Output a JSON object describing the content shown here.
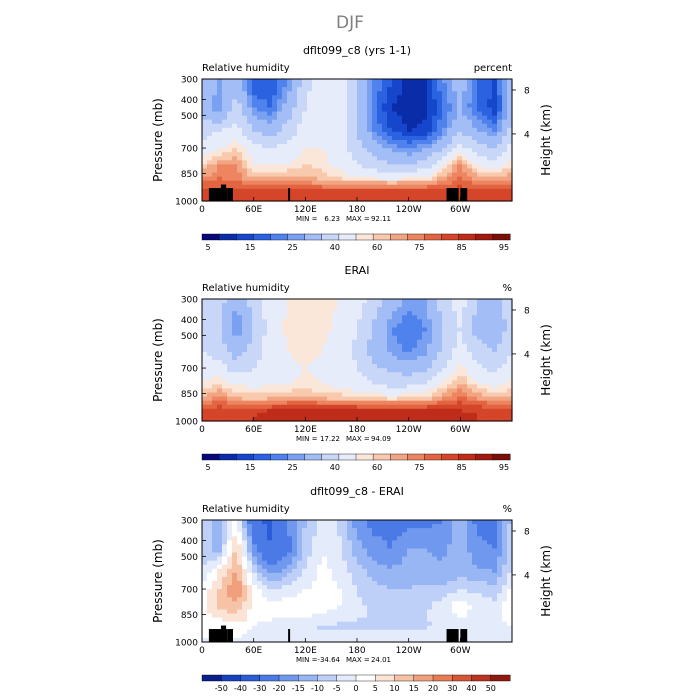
{
  "page_title": "DJF",
  "colors": {
    "rh_levels": [
      "#08087a",
      "#0b2ca8",
      "#1646cc",
      "#2a62e0",
      "#4f82ec",
      "#7aa0f2",
      "#a3bdf6",
      "#c8d6f8",
      "#e6ecfa",
      "#fbe6da",
      "#f8c9ad",
      "#f2a583",
      "#ec8560",
      "#e26440",
      "#d4452a",
      "#bf2d1a",
      "#a01a10",
      "#7a0f0a"
    ],
    "diff_levels": [
      "#0a1f8a",
      "#1740c0",
      "#2b5cd8",
      "#4b7ae6",
      "#7098ee",
      "#98b6f4",
      "#bfd0f8",
      "#e4ebfa",
      "#ffffff",
      "#fbe4d6",
      "#f6c3a6",
      "#f0a07c",
      "#e67b56",
      "#d65636",
      "#bb3320",
      "#8e1a10"
    ],
    "topography": "#000000"
  },
  "chart_data": [
    {
      "type": "heatmap",
      "title": "dflt099_c8 (yrs 1-1)",
      "left_label": "Relative humidity",
      "units": "percent",
      "xlabel": "",
      "ylabel": "Pressure (mb)",
      "y2label": "Height (km)",
      "xticks": [
        "0",
        "60E",
        "120E",
        "180",
        "120W",
        "60W"
      ],
      "xlim": [
        0,
        360
      ],
      "yticks": [
        "300",
        "400",
        "500",
        "700",
        "850",
        "1000"
      ],
      "ylim": [
        1000,
        300
      ],
      "y2ticks": [
        "8",
        "4"
      ],
      "stats": {
        "min_label": "MIN =",
        "min": "6.23",
        "max_label": "MAX =",
        "max": "92.11"
      },
      "colorbar": {
        "ticks": [
          "5",
          "15",
          "25",
          "40",
          "60",
          "75",
          "85",
          "95"
        ]
      },
      "topography_blocks": [
        {
          "lon": [
            8,
            30
          ],
          "p_top": 880
        },
        {
          "lon": [
            22,
            28
          ],
          "p_top": 850
        },
        {
          "lon": [
            30,
            36
          ],
          "p_top": 880
        },
        {
          "lon": [
            100,
            102
          ],
          "p_top": 880
        },
        {
          "lon": [
            284,
            298
          ],
          "p_top": 880
        },
        {
          "lon": [
            300,
            308
          ],
          "p_top": 880
        }
      ],
      "field": {
        "lon": [
          0,
          20,
          40,
          60,
          80,
          100,
          120,
          140,
          160,
          180,
          200,
          220,
          240,
          260,
          280,
          300,
          320,
          340,
          360
        ],
        "p": [
          300,
          400,
          500,
          600,
          700,
          800,
          850,
          900,
          950,
          1000
        ],
        "values": [
          [
            40,
            30,
            35,
            15,
            15,
            25,
            45,
            60,
            55,
            40,
            25,
            15,
            8,
            10,
            25,
            35,
            20,
            15,
            40
          ],
          [
            35,
            25,
            45,
            25,
            20,
            35,
            50,
            60,
            55,
            40,
            20,
            10,
            7,
            8,
            20,
            30,
            20,
            12,
            35
          ],
          [
            45,
            50,
            55,
            40,
            35,
            45,
            55,
            60,
            55,
            40,
            25,
            15,
            10,
            12,
            25,
            40,
            30,
            25,
            45
          ],
          [
            55,
            60,
            65,
            55,
            50,
            55,
            60,
            60,
            55,
            45,
            35,
            30,
            25,
            30,
            40,
            55,
            45,
            40,
            55
          ],
          [
            65,
            75,
            75,
            60,
            60,
            60,
            65,
            62,
            58,
            50,
            45,
            40,
            40,
            45,
            60,
            75,
            60,
            55,
            65
          ],
          [
            75,
            80,
            78,
            70,
            70,
            72,
            72,
            68,
            65,
            60,
            60,
            58,
            60,
            62,
            72,
            82,
            72,
            70,
            75
          ],
          [
            82,
            85,
            82,
            80,
            80,
            80,
            78,
            76,
            76,
            75,
            75,
            75,
            75,
            76,
            80,
            85,
            80,
            80,
            82
          ],
          [
            85,
            85,
            85,
            85,
            86,
            86,
            86,
            86,
            86,
            86,
            86,
            86,
            86,
            86,
            86,
            86,
            86,
            85,
            85
          ],
          [
            88,
            88,
            88,
            88,
            88,
            88,
            88,
            88,
            88,
            88,
            88,
            88,
            88,
            88,
            88,
            88,
            88,
            88,
            88
          ],
          [
            88,
            88,
            88,
            88,
            88,
            88,
            88,
            88,
            88,
            88,
            88,
            88,
            88,
            88,
            88,
            88,
            88,
            88,
            88
          ]
        ]
      }
    },
    {
      "type": "heatmap",
      "title": "ERAI",
      "left_label": "Relative humidity",
      "units": "%",
      "xlabel": "",
      "ylabel": "Pressure (mb)",
      "y2label": "Height (km)",
      "xticks": [
        "0",
        "60E",
        "120E",
        "180",
        "120W",
        "60W"
      ],
      "xlim": [
        0,
        360
      ],
      "yticks": [
        "300",
        "400",
        "500",
        "700",
        "850",
        "1000"
      ],
      "ylim": [
        1000,
        300
      ],
      "y2ticks": [
        "8",
        "4"
      ],
      "stats": {
        "min_label": "MIN =",
        "min": "17.22",
        "max_label": "MAX =",
        "max": "94.09"
      },
      "colorbar": {
        "ticks": [
          "5",
          "15",
          "25",
          "40",
          "60",
          "75",
          "85",
          "95"
        ]
      },
      "topography_blocks": [],
      "field": {
        "lon": [
          0,
          20,
          40,
          60,
          80,
          100,
          120,
          140,
          160,
          180,
          200,
          220,
          240,
          260,
          280,
          300,
          320,
          340,
          360
        ],
        "p": [
          300,
          400,
          500,
          600,
          700,
          800,
          850,
          900,
          950,
          1000
        ],
        "values": [
          [
            50,
            45,
            30,
            45,
            55,
            60,
            60,
            62,
            60,
            55,
            45,
            35,
            28,
            30,
            45,
            55,
            40,
            35,
            50
          ],
          [
            45,
            40,
            25,
            40,
            55,
            62,
            62,
            62,
            58,
            50,
            38,
            25,
            20,
            25,
            40,
            50,
            35,
            30,
            45
          ],
          [
            50,
            45,
            35,
            45,
            55,
            60,
            62,
            60,
            55,
            48,
            35,
            28,
            24,
            28,
            42,
            55,
            45,
            40,
            50
          ],
          [
            55,
            55,
            45,
            50,
            55,
            58,
            60,
            58,
            55,
            50,
            42,
            38,
            35,
            38,
            50,
            62,
            52,
            48,
            55
          ],
          [
            62,
            65,
            60,
            58,
            60,
            60,
            62,
            60,
            58,
            55,
            50,
            48,
            48,
            52,
            62,
            72,
            62,
            58,
            62
          ],
          [
            72,
            78,
            70,
            68,
            70,
            72,
            72,
            70,
            68,
            66,
            65,
            64,
            66,
            68,
            75,
            82,
            74,
            72,
            72
          ],
          [
            80,
            85,
            80,
            80,
            82,
            84,
            84,
            84,
            82,
            82,
            80,
            80,
            80,
            82,
            85,
            88,
            84,
            82,
            80
          ],
          [
            85,
            88,
            86,
            88,
            90,
            90,
            90,
            90,
            90,
            90,
            90,
            90,
            90,
            90,
            90,
            90,
            88,
            86,
            85
          ],
          [
            88,
            90,
            88,
            90,
            92,
            92,
            92,
            92,
            92,
            92,
            92,
            92,
            92,
            92,
            92,
            92,
            90,
            88,
            88
          ],
          [
            88,
            90,
            88,
            90,
            92,
            92,
            92,
            92,
            92,
            92,
            92,
            92,
            92,
            92,
            92,
            92,
            90,
            88,
            88
          ]
        ]
      }
    },
    {
      "type": "heatmap",
      "title": "dflt099_c8 - ERAI",
      "left_label": "Relative humidity",
      "units": "%",
      "xlabel": "",
      "ylabel": "Pressure (mb)",
      "y2label": "Height (km)",
      "xticks": [
        "0",
        "60E",
        "120E",
        "180",
        "120W",
        "60W"
      ],
      "xlim": [
        0,
        360
      ],
      "yticks": [
        "300",
        "400",
        "500",
        "700",
        "850",
        "1000"
      ],
      "ylim": [
        1000,
        300
      ],
      "y2ticks": [
        "8",
        "4"
      ],
      "stats": {
        "min_label": "MIN =",
        "min": "-34.64",
        "max_label": "MAX =",
        "max": "24.01"
      },
      "colorbar": {
        "ticks": [
          "-50",
          "-40",
          "-30",
          "-20",
          "-15",
          "-10",
          "-5",
          "0",
          "5",
          "10",
          "15",
          "20",
          "30",
          "40",
          "50"
        ]
      },
      "topography_blocks": [
        {
          "lon": [
            8,
            30
          ],
          "p_top": 880
        },
        {
          "lon": [
            22,
            28
          ],
          "p_top": 850
        },
        {
          "lon": [
            30,
            36
          ],
          "p_top": 880
        },
        {
          "lon": [
            100,
            102
          ],
          "p_top": 880
        },
        {
          "lon": [
            284,
            298
          ],
          "p_top": 880
        },
        {
          "lon": [
            300,
            308
          ],
          "p_top": 880
        }
      ],
      "field": {
        "lon": [
          0,
          20,
          40,
          60,
          80,
          100,
          120,
          140,
          160,
          180,
          200,
          220,
          240,
          260,
          280,
          300,
          320,
          340,
          360
        ],
        "p": [
          300,
          400,
          500,
          600,
          700,
          800,
          850,
          900,
          950,
          1000
        ],
        "values": [
          [
            -8,
            -12,
            2,
            -28,
            -32,
            -20,
            -10,
            -3,
            -6,
            -18,
            -22,
            -22,
            -22,
            -22,
            -20,
            -12,
            -22,
            -22,
            -8
          ],
          [
            -8,
            -12,
            12,
            -18,
            -30,
            -22,
            -8,
            0,
            -4,
            -12,
            -18,
            -20,
            -15,
            -15,
            -16,
            -12,
            -18,
            -20,
            -8
          ],
          [
            -4,
            6,
            16,
            -6,
            -18,
            -12,
            -4,
            2,
            -2,
            -8,
            -12,
            -14,
            -12,
            -14,
            -14,
            -12,
            -14,
            -15,
            -4
          ],
          [
            2,
            10,
            20,
            4,
            -4,
            -2,
            0,
            2,
            0,
            -5,
            -8,
            -10,
            -10,
            -8,
            -8,
            -5,
            -6,
            -8,
            2
          ],
          [
            4,
            12,
            14,
            3,
            2,
            2,
            2,
            2,
            0,
            -4,
            -6,
            -8,
            -8,
            -6,
            -2,
            3,
            -2,
            -3,
            4
          ],
          [
            2,
            4,
            8,
            2,
            0,
            0,
            0,
            -2,
            -3,
            -5,
            -5,
            -6,
            -6,
            -5,
            -2,
            0,
            -1,
            -2,
            2
          ],
          [
            0,
            0,
            4,
            0,
            -2,
            -3,
            -4,
            -6,
            -6,
            -7,
            -8,
            -8,
            -8,
            -6,
            -4,
            -2,
            -2,
            -2,
            0
          ],
          [
            0,
            2,
            2,
            -2,
            -4,
            -4,
            -4,
            -4,
            -4,
            -4,
            -4,
            -4,
            -4,
            -4,
            -4,
            -4,
            -2,
            0,
            0
          ],
          [
            0,
            0,
            0,
            -1,
            -3,
            -4,
            -4,
            -3,
            -3,
            -3,
            -3,
            -3,
            -3,
            -3,
            -4,
            -4,
            -2,
            0,
            0
          ],
          [
            0,
            0,
            0,
            -1,
            -3,
            -4,
            -4,
            -3,
            -3,
            -3,
            -3,
            -3,
            -3,
            -3,
            -4,
            -4,
            -2,
            0,
            0
          ]
        ]
      }
    }
  ]
}
